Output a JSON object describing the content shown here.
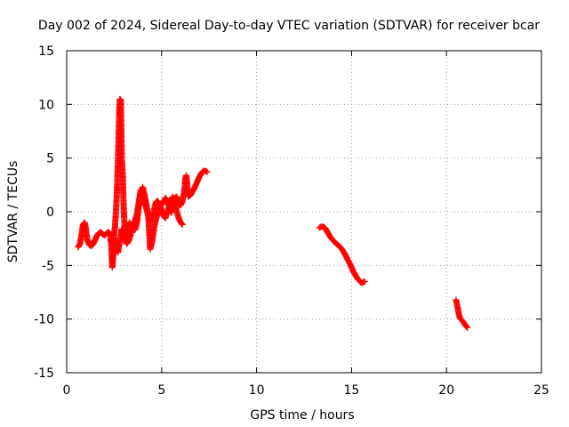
{
  "chart_data": {
    "type": "scatter",
    "title": "Day 002 of 2024, Sidereal Day-to-day VTEC variation (SDTVAR) for receiver bcar",
    "xlabel": "GPS time / hours",
    "ylabel": "SDTVAR / TECUs",
    "xlim": [
      0,
      25
    ],
    "ylim": [
      -15,
      15
    ],
    "xticks": [
      0,
      5,
      10,
      15,
      20,
      25
    ],
    "yticks": [
      -15,
      -10,
      -5,
      0,
      5,
      10,
      15
    ],
    "x_tick_labels": [
      "0",
      "5",
      "10",
      "15",
      "20",
      "25"
    ],
    "y_tick_labels": [
      "-15",
      "-10",
      "-5",
      "0",
      "5",
      "10",
      "15"
    ],
    "grid": true,
    "marker": "+",
    "series": [
      {
        "name": "bcar",
        "color": "#ff0000",
        "segments": [
          [
            [
              0.6,
              -3.3
            ],
            [
              0.7,
              -3.0
            ],
            [
              0.8,
              -2.0
            ],
            [
              0.85,
              -1.3
            ],
            [
              0.9,
              -1.1
            ],
            [
              0.95,
              -1.0
            ],
            [
              1.0,
              -1.5
            ],
            [
              1.05,
              -2.2
            ],
            [
              1.1,
              -2.7
            ],
            [
              1.2,
              -3.1
            ],
            [
              1.3,
              -3.2
            ],
            [
              1.4,
              -3.0
            ],
            [
              1.5,
              -2.6
            ],
            [
              1.6,
              -2.2
            ],
            [
              1.7,
              -2.0
            ],
            [
              1.8,
              -1.9
            ],
            [
              1.9,
              -2.1
            ],
            [
              2.0,
              -2.2
            ],
            [
              2.1,
              -2.0
            ],
            [
              2.2,
              -1.9
            ],
            [
              2.3,
              -2.1
            ],
            [
              2.35,
              -3.0
            ],
            [
              2.4,
              -5.2
            ],
            [
              2.45,
              -4.2
            ],
            [
              2.5,
              -2.0
            ],
            [
              2.55,
              -1.3
            ],
            [
              2.6,
              0.2
            ],
            [
              2.65,
              2.0
            ],
            [
              2.7,
              4.5
            ],
            [
              2.75,
              8.0
            ],
            [
              2.8,
              10.5
            ],
            [
              2.85,
              10.4
            ],
            [
              2.9,
              5.0
            ],
            [
              2.95,
              3.5
            ],
            [
              3.0,
              0.5
            ],
            [
              3.05,
              -1.5
            ],
            [
              3.1,
              -2.3
            ],
            [
              3.15,
              -3.0
            ],
            [
              3.2,
              -2.0
            ],
            [
              3.25,
              -1.3
            ],
            [
              3.3,
              -1.0
            ],
            [
              3.4,
              -1.3
            ],
            [
              3.5,
              -1.5
            ],
            [
              3.6,
              -1.7
            ],
            [
              3.7,
              -1.0
            ],
            [
              3.8,
              0.5
            ],
            [
              3.9,
              1.8
            ],
            [
              4.0,
              2.3
            ],
            [
              4.1,
              1.6
            ],
            [
              4.2,
              0.6
            ],
            [
              4.3,
              -0.4
            ],
            [
              4.4,
              -0.9
            ],
            [
              4.5,
              -0.5
            ],
            [
              4.6,
              0.1
            ],
            [
              4.7,
              0.9
            ],
            [
              4.8,
              1.0
            ],
            [
              4.9,
              0.6
            ],
            [
              5.0,
              0.2
            ],
            [
              5.1,
              -0.4
            ],
            [
              5.2,
              -0.6
            ],
            [
              5.3,
              0.0
            ],
            [
              5.4,
              0.5
            ],
            [
              5.5,
              1.1
            ],
            [
              5.6,
              1.4
            ],
            [
              5.7,
              0.9
            ],
            [
              5.8,
              0.0
            ],
            [
              5.9,
              -0.6
            ],
            [
              6.0,
              -1.0
            ],
            [
              6.1,
              -1.2
            ]
          ],
          [
            [
              2.3,
              -2.6
            ],
            [
              2.4,
              -3.1
            ],
            [
              2.5,
              -2.5
            ],
            [
              2.6,
              -3.2
            ],
            [
              2.7,
              -3.8
            ],
            [
              2.8,
              -2.8
            ],
            [
              2.9,
              -1.6
            ],
            [
              3.0,
              -2.3
            ],
            [
              3.1,
              -2.6
            ],
            [
              3.2,
              -2.9
            ],
            [
              3.3,
              -2.6
            ],
            [
              3.4,
              -1.9
            ],
            [
              3.5,
              -1.2
            ],
            [
              3.6,
              -0.8
            ],
            [
              3.7,
              -0.2
            ],
            [
              3.8,
              0.9
            ],
            [
              3.9,
              2.0
            ],
            [
              4.0,
              1.7
            ],
            [
              4.1,
              0.8
            ],
            [
              4.2,
              0.3
            ],
            [
              4.3,
              -0.4
            ],
            [
              4.35,
              -2.0
            ],
            [
              4.4,
              -3.5
            ],
            [
              4.5,
              -2.8
            ],
            [
              4.6,
              -1.5
            ],
            [
              4.7,
              -0.7
            ],
            [
              4.8,
              -0.2
            ],
            [
              4.9,
              0.4
            ],
            [
              5.0,
              0.7
            ],
            [
              5.1,
              0.9
            ],
            [
              5.2,
              1.3
            ],
            [
              5.3,
              1.0
            ],
            [
              5.4,
              0.4
            ],
            [
              5.5,
              -0.1
            ],
            [
              5.6,
              0.4
            ],
            [
              5.7,
              1.3
            ],
            [
              5.8,
              1.4
            ],
            [
              5.9,
              0.7
            ],
            [
              6.0,
              0.6
            ],
            [
              6.1,
              1.0
            ],
            [
              6.2,
              2.0
            ],
            [
              6.25,
              3.1
            ],
            [
              6.3,
              3.4
            ],
            [
              6.35,
              2.4
            ],
            [
              6.4,
              1.4
            ],
            [
              6.5,
              1.5
            ],
            [
              6.6,
              1.8
            ],
            [
              6.7,
              2.1
            ],
            [
              6.8,
              2.5
            ],
            [
              6.9,
              2.9
            ],
            [
              7.0,
              3.3
            ],
            [
              7.1,
              3.6
            ],
            [
              7.2,
              3.8
            ],
            [
              7.3,
              3.8
            ],
            [
              7.4,
              3.7
            ]
          ],
          [
            [
              13.3,
              -1.5
            ],
            [
              13.4,
              -1.4
            ],
            [
              13.5,
              -1.4
            ],
            [
              13.6,
              -1.5
            ],
            [
              13.7,
              -1.8
            ],
            [
              13.8,
              -2.1
            ],
            [
              13.9,
              -2.4
            ],
            [
              14.0,
              -2.6
            ],
            [
              14.1,
              -2.8
            ],
            [
              14.2,
              -3.0
            ],
            [
              14.3,
              -3.1
            ],
            [
              14.4,
              -3.3
            ],
            [
              14.5,
              -3.5
            ],
            [
              14.6,
              -3.8
            ],
            [
              14.7,
              -4.1
            ],
            [
              14.8,
              -4.5
            ],
            [
              14.9,
              -4.8
            ],
            [
              15.0,
              -5.2
            ],
            [
              15.1,
              -5.6
            ],
            [
              15.2,
              -5.9
            ],
            [
              15.3,
              -6.2
            ],
            [
              15.4,
              -6.4
            ],
            [
              15.5,
              -6.6
            ],
            [
              15.6,
              -6.6
            ],
            [
              15.7,
              -6.5
            ]
          ],
          [
            [
              20.5,
              -8.2
            ],
            [
              20.55,
              -8.6
            ],
            [
              20.6,
              -9.0
            ],
            [
              20.65,
              -9.5
            ],
            [
              20.7,
              -9.9
            ],
            [
              20.8,
              -10.1
            ],
            [
              20.9,
              -10.3
            ],
            [
              21.0,
              -10.6
            ],
            [
              21.1,
              -10.8
            ]
          ]
        ]
      }
    ]
  }
}
